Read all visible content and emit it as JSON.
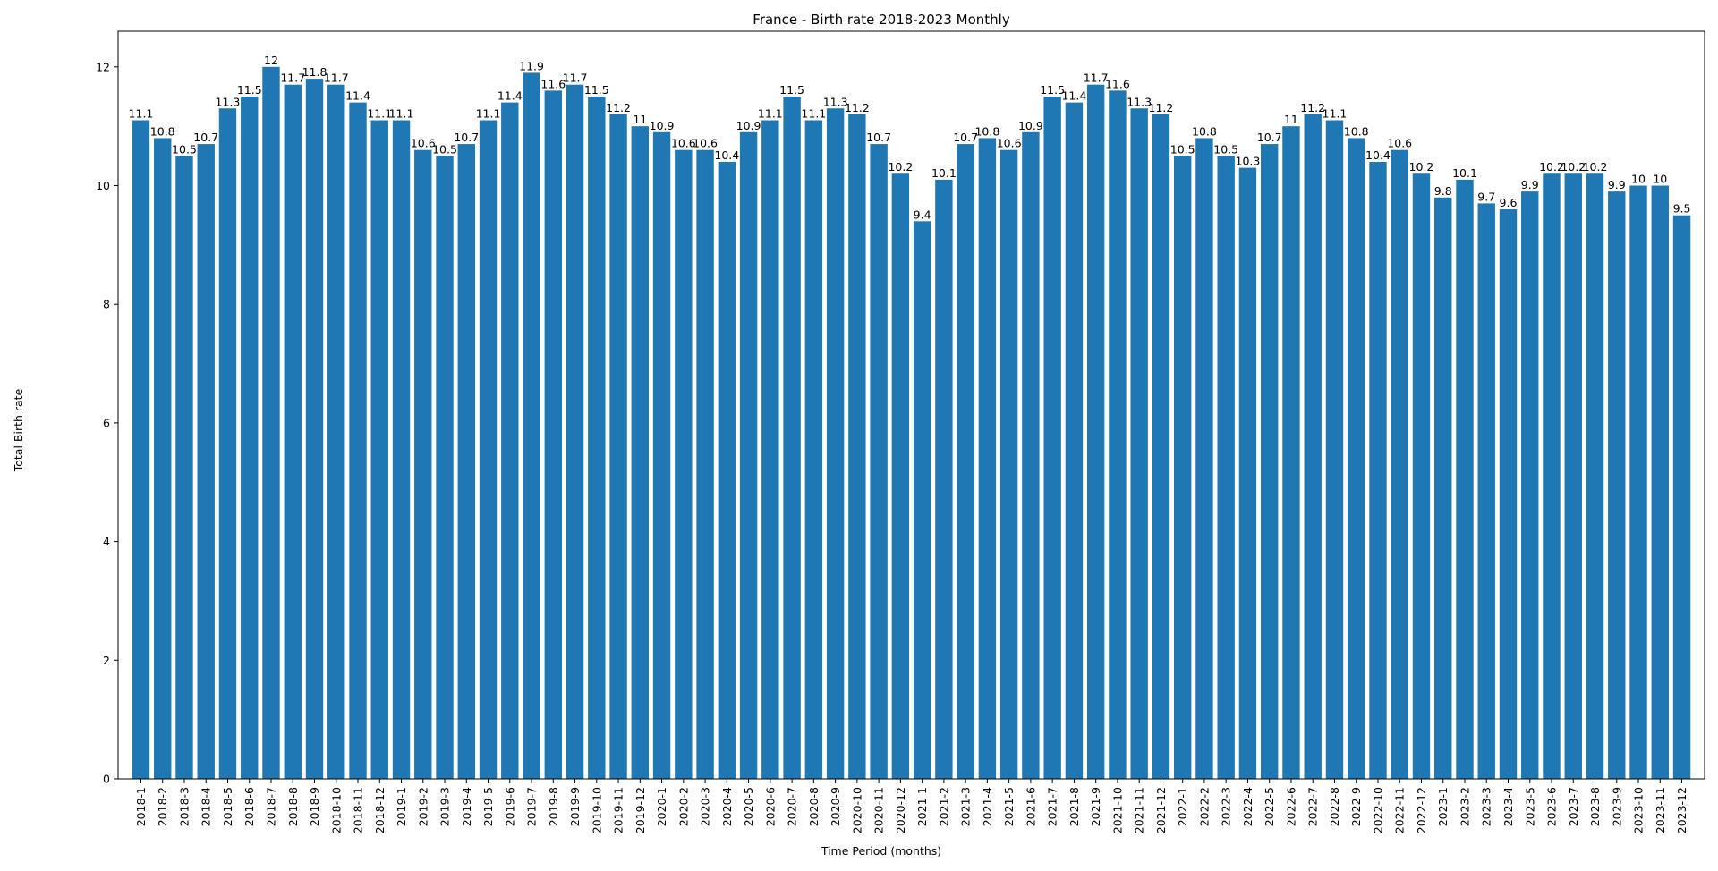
{
  "chart_data": {
    "type": "bar",
    "title": "France - Birth rate 2018-2023 Monthly",
    "xlabel": "Time Period (months)",
    "ylabel": "Total Birth rate",
    "ylim": [
      0,
      12.6
    ],
    "yticks": [
      0,
      2,
      4,
      6,
      8,
      10,
      12
    ],
    "grid": false,
    "bar_color": "#1f77b4",
    "categories": [
      "2018-1",
      "2018-2",
      "2018-3",
      "2018-4",
      "2018-5",
      "2018-6",
      "2018-7",
      "2018-8",
      "2018-9",
      "2018-10",
      "2018-11",
      "2018-12",
      "2019-1",
      "2019-2",
      "2019-3",
      "2019-4",
      "2019-5",
      "2019-6",
      "2019-7",
      "2019-8",
      "2019-9",
      "2019-10",
      "2019-11",
      "2019-12",
      "2020-1",
      "2020-2",
      "2020-3",
      "2020-4",
      "2020-5",
      "2020-6",
      "2020-7",
      "2020-8",
      "2020-9",
      "2020-10",
      "2020-11",
      "2020-12",
      "2021-1",
      "2021-2",
      "2021-3",
      "2021-4",
      "2021-5",
      "2021-6",
      "2021-7",
      "2021-8",
      "2021-9",
      "2021-10",
      "2021-11",
      "2021-12",
      "2022-1",
      "2022-2",
      "2022-3",
      "2022-4",
      "2022-5",
      "2022-6",
      "2022-7",
      "2022-8",
      "2022-9",
      "2022-10",
      "2022-11",
      "2022-12",
      "2023-1",
      "2023-2",
      "2023-3",
      "2023-4",
      "2023-5",
      "2023-6",
      "2023-7",
      "2023-8",
      "2023-9",
      "2023-10",
      "2023-11",
      "2023-12"
    ],
    "values": [
      11.1,
      10.8,
      10.5,
      10.7,
      11.3,
      11.5,
      12,
      11.7,
      11.8,
      11.7,
      11.4,
      11.1,
      11.1,
      10.6,
      10.5,
      10.7,
      11.1,
      11.4,
      11.9,
      11.6,
      11.7,
      11.5,
      11.2,
      11,
      10.9,
      10.6,
      10.6,
      10.4,
      10.9,
      11.1,
      11.5,
      11.1,
      11.3,
      11.2,
      10.7,
      10.2,
      9.4,
      10.1,
      10.7,
      10.8,
      10.6,
      10.9,
      11.5,
      11.4,
      11.7,
      11.6,
      11.3,
      11.2,
      10.5,
      10.8,
      10.5,
      10.3,
      10.7,
      11,
      11.2,
      11.1,
      10.8,
      10.4,
      10.6,
      10.2,
      9.8,
      10.1,
      9.7,
      9.6,
      9.9,
      10.2,
      10.2,
      10.2,
      9.9,
      10,
      10,
      9.5
    ]
  }
}
